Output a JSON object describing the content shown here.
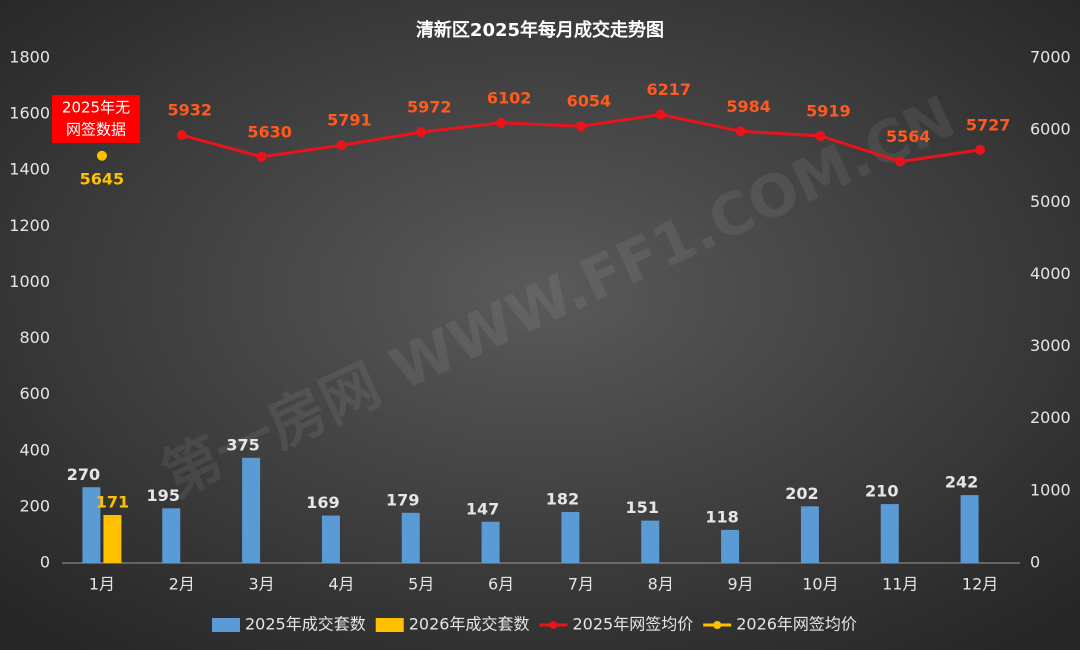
{
  "chart_data": {
    "type": "combo",
    "title": "清新区2025年每月成交走势图",
    "watermark": "第一房网 WWW.FF1.COM.CN",
    "annotation": [
      "2025年无",
      "网签数据"
    ],
    "categories": [
      "1月",
      "2月",
      "3月",
      "4月",
      "5月",
      "6月",
      "7月",
      "8月",
      "9月",
      "10月",
      "11月",
      "12月"
    ],
    "series": [
      {
        "name": "2025年成交套数",
        "type": "bar",
        "color": "#5b9bd5",
        "values": [
          270,
          195,
          375,
          169,
          179,
          147,
          182,
          151,
          118,
          202,
          210,
          242
        ]
      },
      {
        "name": "2026年成交套数",
        "type": "bar",
        "color": "#ffc000",
        "values": [
          171,
          null,
          null,
          null,
          null,
          null,
          null,
          null,
          null,
          null,
          null,
          null
        ]
      },
      {
        "name": "2025年网签均价",
        "type": "line",
        "axis": "y2",
        "color": "#e8141c",
        "values": [
          null,
          5932,
          5630,
          5791,
          5972,
          6102,
          6054,
          6217,
          5984,
          5919,
          5564,
          5727
        ]
      },
      {
        "name": "2026年网签均价",
        "type": "line",
        "axis": "y2",
        "color": "#ffc000",
        "values": [
          5645,
          null,
          null,
          null,
          null,
          null,
          null,
          null,
          null,
          null,
          null,
          null
        ]
      }
    ],
    "ylim": [
      0,
      1800
    ],
    "yticks": [
      0,
      200,
      400,
      600,
      800,
      1000,
      1200,
      1400,
      1600,
      1800
    ],
    "y2lim": [
      0,
      7000
    ],
    "y2ticks": [
      0,
      1000,
      2000,
      3000,
      4000,
      5000,
      6000,
      7000
    ],
    "legend": "bottom"
  }
}
